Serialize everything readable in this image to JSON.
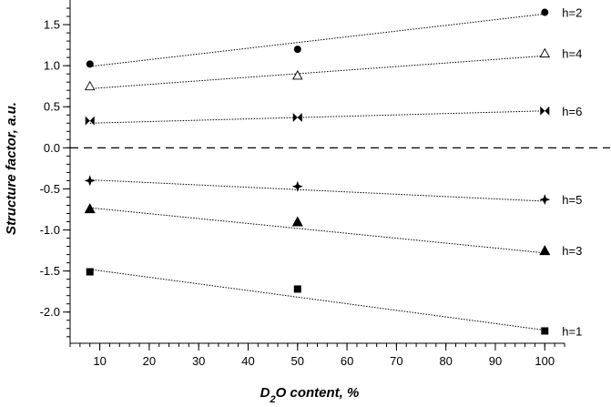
{
  "chart_data": {
    "type": "scatter",
    "xlabel": {
      "main": "D",
      "sub": "2",
      "rest": "O content, %"
    },
    "ylabel": "Structure factor, a.u.",
    "xlim": [
      4,
      104
    ],
    "ylim": [
      -2.38,
      1.8
    ],
    "x_ticks": [
      10,
      20,
      30,
      40,
      50,
      60,
      70,
      80,
      90,
      100
    ],
    "y_ticks": [
      -2.0,
      -1.5,
      -1.0,
      -0.5,
      0.0,
      0.5,
      1.0,
      1.5
    ],
    "y_tick_labels": [
      "-2.0",
      "-1.5",
      "-1.0",
      "-0.5",
      "0.0",
      "0.5",
      "1.0",
      "1.5"
    ],
    "x_minor_step": 2,
    "y_minor_step": 0.1,
    "zero_line": {
      "y": 0.0,
      "style": "dashed"
    },
    "series": [
      {
        "name": "h=2",
        "marker": "circle",
        "x": [
          8,
          50,
          100
        ],
        "y": [
          1.02,
          1.2,
          1.65
        ],
        "fit": [
          0.99,
          1.63
        ]
      },
      {
        "name": "h=4",
        "marker": "triangle-open",
        "x": [
          8,
          50,
          100
        ],
        "y": [
          0.75,
          0.88,
          1.15
        ],
        "fit": [
          0.72,
          1.12
        ]
      },
      {
        "name": "h=6",
        "marker": "bowtie",
        "x": [
          8,
          50,
          100
        ],
        "y": [
          0.33,
          0.37,
          0.45
        ],
        "fit": [
          0.3,
          0.45
        ]
      },
      {
        "name": "h=5",
        "marker": "star4",
        "x": [
          8,
          50,
          100
        ],
        "y": [
          -0.4,
          -0.47,
          -0.63
        ],
        "fit": [
          -0.39,
          -0.65
        ]
      },
      {
        "name": "h=3",
        "marker": "triangle-filled",
        "x": [
          8,
          50,
          100
        ],
        "y": [
          -0.74,
          -0.9,
          -1.25
        ],
        "fit": [
          -0.73,
          -1.28
        ]
      },
      {
        "name": "h=1",
        "marker": "square",
        "x": [
          8,
          50,
          100
        ],
        "y": [
          -1.51,
          -1.72,
          -2.23
        ],
        "fit": [
          -1.48,
          -2.22
        ]
      }
    ]
  }
}
